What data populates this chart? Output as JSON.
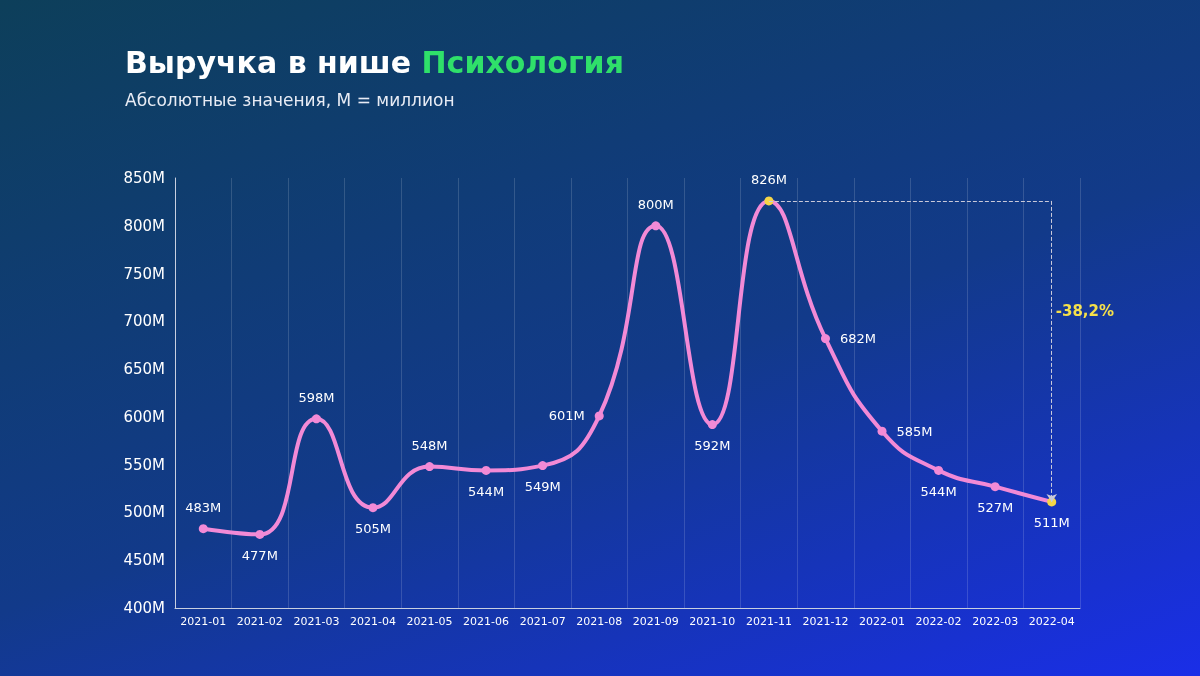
{
  "chart_data": {
    "type": "line",
    "title": "Выручка в нише Психология",
    "subtitle": "Абсолютные значения, M = миллион",
    "categories": [
      "2021-01",
      "2021-02",
      "2021-03",
      "2021-04",
      "2021-05",
      "2021-06",
      "2021-07",
      "2021-08",
      "2021-09",
      "2021-10",
      "2021-11",
      "2021-12",
      "2022-01",
      "2022-02",
      "2022-03",
      "2022-04"
    ],
    "series": [
      {
        "color": "#f28ad6",
        "colors": [
          "#f28ad6",
          "#f28ad6",
          "#f28ad6",
          "#f28ad6",
          "#f28ad6",
          "#f28ad6",
          "#f28ad6",
          "#f28ad6",
          "#f28ad6",
          "#f28ad6",
          "#f5d547",
          "#f28ad6",
          "#f28ad6",
          "#f28ad6",
          "#f28ad6",
          "#f5d547"
        ],
        "values": [
          483,
          477,
          598,
          505,
          548,
          544,
          549,
          601,
          800,
          592,
          826,
          682,
          585,
          544,
          527,
          511
        ],
        "value_labels": [
          "483M",
          "477M",
          "598M",
          "505M",
          "548M",
          "544M",
          "549M",
          "601M",
          "800M",
          "592M",
          "826M",
          "682M",
          "585M",
          "544M",
          "527M",
          "511M"
        ]
      }
    ],
    "ylim": [
      400,
      850
    ],
    "yticks": [
      {
        "value": 400,
        "label": "400M"
      },
      {
        "value": 450,
        "label": "450M"
      },
      {
        "value": 500,
        "label": "500M"
      },
      {
        "value": 550,
        "label": "550M"
      },
      {
        "value": 600,
        "label": "600M"
      },
      {
        "value": 650,
        "label": "650M"
      },
      {
        "value": 700,
        "label": "700M"
      },
      {
        "value": 750,
        "label": "750M"
      },
      {
        "value": 800,
        "label": "800M"
      },
      {
        "value": 850,
        "label": "850M"
      }
    ],
    "grid": "x",
    "marker": "circle",
    "line_style": "solid",
    "annotations": [
      "-38,2%"
    ]
  }
}
